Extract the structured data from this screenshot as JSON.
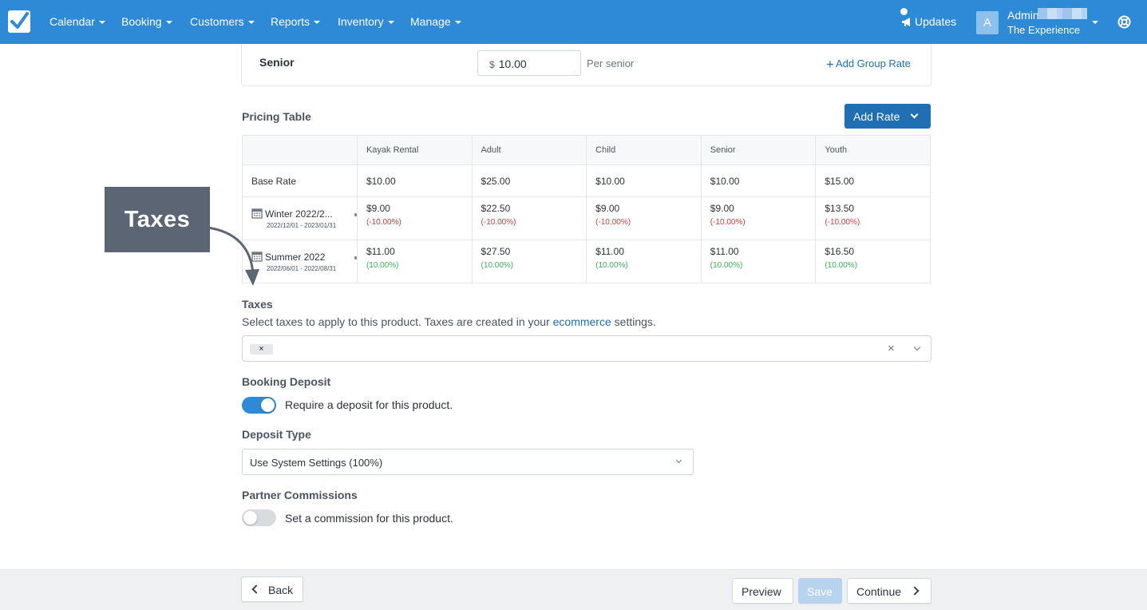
{
  "nav": {
    "items": [
      {
        "label": "Calendar"
      },
      {
        "label": "Booking"
      },
      {
        "label": "Customers"
      },
      {
        "label": "Reports"
      },
      {
        "label": "Inventory"
      },
      {
        "label": "Manage"
      }
    ],
    "updates_label": "Updates",
    "avatar_initial": "A",
    "admin_name": "Admin",
    "admin_org": "The Experience",
    "brand_color": "#2d8ad6"
  },
  "senior_rate": {
    "label": "Senior",
    "currency": "$",
    "value": "10.00",
    "unit": "Per senior",
    "add_group_rate": "Add Group Rate"
  },
  "pricing_table": {
    "title": "Pricing Table",
    "add_rate_label": "Add Rate",
    "columns": [
      "Kayak Rental",
      "Adult",
      "Child",
      "Senior",
      "Youth"
    ],
    "base": {
      "label": "Base Rate",
      "values": [
        "$10.00",
        "$25.00",
        "$10.00",
        "$10.00",
        "$15.00"
      ]
    },
    "seasons": [
      {
        "name": "Winter 2022/2...",
        "dates": "2022/12/01 - 2023/01/31",
        "values": [
          "$9.00",
          "$22.50",
          "$9.00",
          "$9.00",
          "$13.50"
        ],
        "adjustment": "(-10.00%)"
      },
      {
        "name": "Summer 2022",
        "dates": "2022/06/01 - 2022/08/31",
        "values": [
          "$11.00",
          "$27.50",
          "$11.00",
          "$11.00",
          "$16.50"
        ],
        "adjustment": "(10.00%)"
      }
    ]
  },
  "callout": {
    "label": "Taxes"
  },
  "taxes": {
    "title": "Taxes",
    "help_before": "Select taxes to apply to this product. Taxes are created in your ",
    "help_link": "ecommerce",
    "help_after": " settings.",
    "chip": "×",
    "clear": "×"
  },
  "deposit": {
    "title": "Booking Deposit",
    "toggle_on": true,
    "label": "Require a deposit for this product."
  },
  "deposit_type": {
    "title": "Deposit Type",
    "selected": "Use System Settings (100%)"
  },
  "commissions": {
    "title": "Partner Commissions",
    "toggle_on": false,
    "label": "Set a commission for this product."
  },
  "footer": {
    "back": "Back",
    "preview": "Preview",
    "save": "Save",
    "continue": "Continue"
  }
}
